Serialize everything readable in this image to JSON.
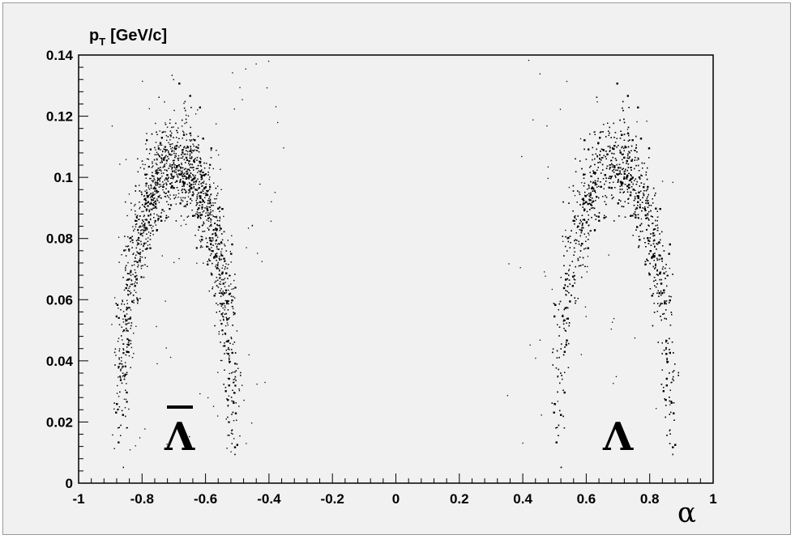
{
  "chart_data": {
    "type": "scatter",
    "title": "",
    "ylabel_main": "p",
    "ylabel_sub": "T",
    "ylabel_unit": "[GeV/c]",
    "xlabel": "α",
    "xlim": [
      -1,
      1
    ],
    "ylim": [
      0,
      0.14
    ],
    "x_ticks": [
      "-1",
      "-0.8",
      "-0.6",
      "-0.4",
      "-0.2",
      "0",
      "0.2",
      "0.4",
      "0.6",
      "0.8",
      "1"
    ],
    "y_ticks": [
      "0",
      "0.02",
      "0.04",
      "0.06",
      "0.08",
      "0.1",
      "0.12",
      "0.14"
    ],
    "grid": false,
    "annotations": [
      {
        "text": "Λ",
        "overline": true,
        "x": -0.67,
        "y": 0.013
      },
      {
        "text": "Λ",
        "overline": false,
        "x": 0.69,
        "y": 0.013
      }
    ],
    "series": [
      {
        "band_centers": [
          {
            "pT": 0.01,
            "alpha": [
              -0.86,
              -0.5
            ]
          },
          {
            "pT": 0.02,
            "alpha": [
              -0.87,
              -0.51
            ]
          },
          {
            "pT": 0.04,
            "alpha": [
              -0.88,
              -0.52
            ]
          },
          {
            "pT": 0.06,
            "alpha": [
              -0.86,
              -0.535
            ]
          },
          {
            "pT": 0.08,
            "alpha": [
              -0.83,
              -0.56
            ]
          },
          {
            "pT": 0.09,
            "alpha": [
              -0.8,
              -0.58
            ]
          },
          {
            "pT": 0.1,
            "alpha": [
              -0.74,
              -0.62
            ]
          },
          {
            "pT": 0.105,
            "alpha": [
              -0.68,
              -0.68
            ]
          },
          {
            "pT": 0.12,
            "alpha": [
              -0.72,
              -0.62
            ]
          },
          {
            "pT": 0.14,
            "alpha": [
              -0.76,
              -0.56
            ]
          }
        ]
      },
      {
        "band_centers": [
          {
            "pT": 0.01,
            "alpha": [
              0.5,
              0.86
            ]
          },
          {
            "pT": 0.02,
            "alpha": [
              0.51,
              0.87
            ]
          },
          {
            "pT": 0.04,
            "alpha": [
              0.52,
              0.88
            ]
          },
          {
            "pT": 0.06,
            "alpha": [
              0.535,
              0.86
            ]
          },
          {
            "pT": 0.08,
            "alpha": [
              0.56,
              0.83
            ]
          },
          {
            "pT": 0.09,
            "alpha": [
              0.58,
              0.8
            ]
          },
          {
            "pT": 0.1,
            "alpha": [
              0.62,
              0.76
            ]
          },
          {
            "pT": 0.105,
            "alpha": [
              0.69,
              0.69
            ]
          },
          {
            "pT": 0.12,
            "alpha": [
              0.62,
              0.74
            ]
          },
          {
            "pT": 0.14,
            "alpha": [
              0.56,
              0.8
            ]
          }
        ]
      }
    ],
    "marker_color": "#000000",
    "background_color": "#f1f1f1"
  }
}
